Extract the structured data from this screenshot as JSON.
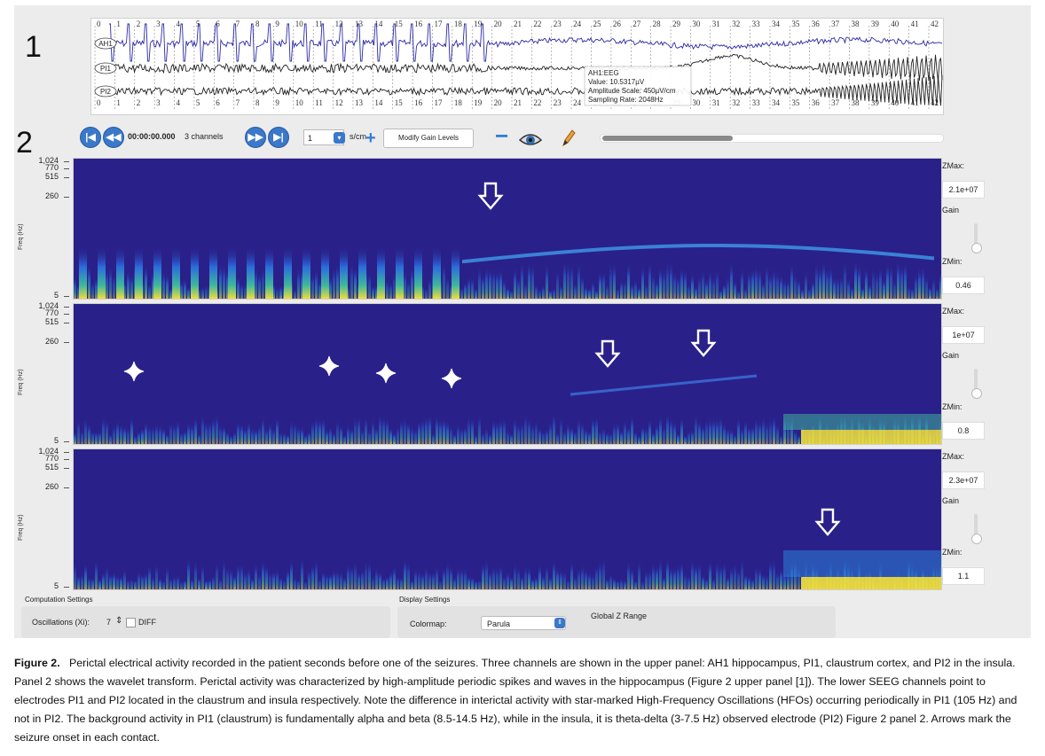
{
  "panels": {
    "p1": "1",
    "p2": "2"
  },
  "eeg": {
    "channels": [
      "AH1",
      "PI1",
      "PI2"
    ],
    "top_ticks": [
      "0",
      "1",
      "2",
      "3",
      "4",
      "5",
      "6",
      "7",
      "8",
      "9",
      "10",
      "11",
      "12",
      "13",
      "14",
      "15",
      "16",
      "17",
      "18",
      "19",
      "20",
      "21",
      "22",
      "23",
      "24",
      "25",
      "26",
      "27",
      "28",
      "29",
      "30",
      "31",
      "32",
      "33",
      "34",
      "35",
      "36",
      "37",
      "38",
      "39",
      "40",
      "41",
      "42"
    ],
    "tooltip": {
      "line1": "AH1:EEG",
      "line2": "Value: 10.5317µV",
      "line3": "Amplitude Scale: 450µV/cm",
      "line4": "Sampling Rate: 2048Hz"
    }
  },
  "toolbar": {
    "time": "00:00:00.000",
    "channels": "3 channels",
    "speed_value": "1",
    "speed_unit": "s/cm",
    "gain_button": "Modify Gain Levels",
    "scroll_fraction": 0.38
  },
  "spectrograms": [
    {
      "yticks": [
        "1,024",
        "770",
        "515",
        "260",
        "5"
      ],
      "ylabel": "Freq (Hz)",
      "zmax_label": "ZMax:",
      "zmax": "2.1e+07",
      "gain_label": "Gain",
      "zmin_label": "ZMin:",
      "zmin": "0.46"
    },
    {
      "yticks": [
        "1,024",
        "770",
        "515",
        "260",
        "5"
      ],
      "ylabel": "Freq (Hz)",
      "zmax_label": "ZMax:",
      "zmax": "1e+07",
      "gain_label": "Gain",
      "zmin_label": "ZMin:",
      "zmin": "0.8"
    },
    {
      "yticks": [
        "1,024",
        "770",
        "515",
        "260",
        "5"
      ],
      "ylabel": "Freq (Hz)",
      "zmax_label": "ZMax:",
      "zmax": "2.3e+07",
      "gain_label": "Gain",
      "zmin_label": "ZMin:",
      "zmin": "1.1"
    }
  ],
  "settings": {
    "computation_title": "Computation Settings",
    "oscillations_label": "Oscillations (Xi):",
    "oscillations_value": "7",
    "diff_label": "DIFF",
    "display_title": "Display Settings",
    "colormap_label": "Colormap:",
    "colormap_value": "Parula",
    "zrange_label": "Global Z Range"
  },
  "caption": {
    "label": "Figure 2.",
    "text": "Perictal electrical activity recorded in the patient seconds before one of the seizures. Three channels are shown in the upper panel: AH1 hippocampus, PI1, claustrum cortex, and PI2 in the insula. Panel 2 shows the wavelet transform. Perictal activity was characterized by high-amplitude periodic spikes and waves in the hippocampus (Figure 2 upper panel [1]). The lower SEEG channels point to electrodes PI1 and PI2 located in the claustrum and insula respectively. Note the difference in interictal activity with star-marked High-Frequency Oscillations (HFOs) occurring periodically in PI1 (105 Hz) and not in PI2. The background activity in PI1 (claustrum) is fundamentally alpha and beta (8.5-14.5 Hz), while in the insula, it is theta-delta (3-7.5 Hz) observed electrode (PI2) Figure 2 panel 2. Arrows mark the seizure onset in each contact."
  },
  "colors": {
    "spec_bg": "#2a208a",
    "accent": "#3b78c9",
    "hot": "#f5e23a"
  }
}
